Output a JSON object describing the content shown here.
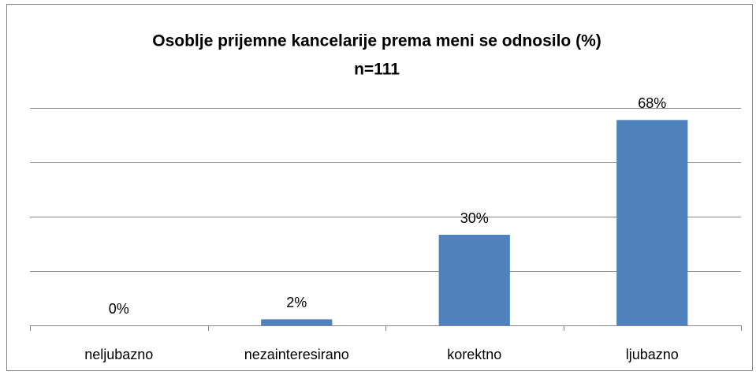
{
  "chart_data": {
    "type": "bar",
    "title": "Osoblje prijemne kancelarije prema meni se odnosilo (%)",
    "subtitle": "n=111",
    "categories": [
      "neljubazno",
      "nezainteresirano",
      "korektno",
      "ljubazno"
    ],
    "values": [
      0,
      2,
      30,
      68
    ],
    "value_labels": [
      "0%",
      "2%",
      "30%",
      "68%"
    ],
    "color": "#4f81bd",
    "ylim": [
      0,
      72
    ],
    "yticks": [
      0,
      18,
      36,
      54,
      72
    ],
    "grid": true
  }
}
